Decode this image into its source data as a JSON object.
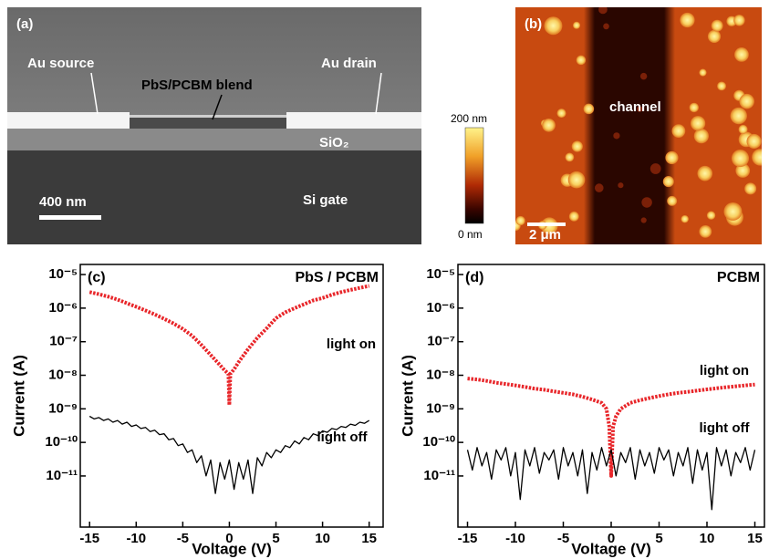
{
  "panel_a": {
    "label": "(a)",
    "source": "Au source",
    "drain": "Au drain",
    "blend": "PbS/PCBM blend",
    "oxide": "SiO₂",
    "gate": "Si gate",
    "scale_bar": "400 nm"
  },
  "panel_b": {
    "label": "(b)",
    "channel": "channel",
    "scale_bar": "2 μm",
    "colorbar_max": "200 nm",
    "colorbar_min": "0 nm"
  },
  "chart_data": [
    {
      "type": "line",
      "panel_label": "(c)",
      "title": "PbS / PCBM",
      "x_label": "Voltage (V)",
      "y_label": "Current (A)",
      "log_y": true,
      "xlim": [
        -16,
        16.5
      ],
      "ylim": [
        3e-13,
        2e-05
      ],
      "xticks": [
        -15,
        -10,
        -5,
        0,
        5,
        10,
        15
      ],
      "yticks": [
        {
          "value": 1e-05,
          "label": "10⁻⁵"
        },
        {
          "value": 1e-06,
          "label": "10⁻⁶"
        },
        {
          "value": 1e-07,
          "label": "10⁻⁷"
        },
        {
          "value": 1e-08,
          "label": "10⁻⁸"
        },
        {
          "value": 1e-09,
          "label": "10⁻⁹"
        },
        {
          "value": 1e-10,
          "label": "10⁻¹⁰"
        },
        {
          "value": 1e-11,
          "label": "10⁻¹¹"
        }
      ],
      "series": [
        {
          "name": "light on",
          "color": "#e8262a",
          "style": "dotted",
          "x": [
            -15,
            -14,
            -13,
            -12,
            -11,
            -10,
            -9,
            -8,
            -7,
            -6,
            -5,
            -4,
            -3,
            -2,
            -1,
            -0.5,
            -0.1,
            0,
            0.1,
            0.5,
            1,
            2,
            3,
            4,
            5,
            6,
            7,
            8,
            9,
            10,
            11,
            12,
            13,
            14,
            15
          ],
          "values": [
            3e-06,
            2.6e-06,
            2.2e-06,
            1.8e-06,
            1.4e-06,
            1.1e-06,
            8.5e-07,
            6.5e-07,
            4.8e-07,
            3.5e-07,
            2.4e-07,
            1.5e-07,
            8e-08,
            4e-08,
            2e-08,
            1.4e-08,
            1.1e-08,
            1.3e-09,
            1.1e-08,
            1.5e-08,
            2.5e-08,
            6e-08,
            1.3e-07,
            2.5e-07,
            5e-07,
            7.5e-07,
            1e-06,
            1.3e-06,
            1.7e-06,
            2e-06,
            2.5e-06,
            3e-06,
            3.5e-06,
            4e-06,
            4.6e-06
          ]
        },
        {
          "name": "light off",
          "color": "#000000",
          "style": "solid",
          "x": [
            -15,
            -14.5,
            -14,
            -13.5,
            -13,
            -12.5,
            -12,
            -11.5,
            -11,
            -10.5,
            -10,
            -9.5,
            -9,
            -8.5,
            -8,
            -7.5,
            -7,
            -6.5,
            -6,
            -5.5,
            -5,
            -4.5,
            -4,
            -3.5,
            -3,
            -2.5,
            -2,
            -1.5,
            -1,
            -0.5,
            0,
            0.5,
            1,
            1.5,
            2,
            2.5,
            3,
            3.5,
            4,
            4.5,
            5,
            5.5,
            6,
            6.5,
            7,
            7.5,
            8,
            8.5,
            9,
            9.5,
            10,
            10.5,
            11,
            11.5,
            12,
            12.5,
            13,
            13.5,
            14,
            14.5,
            15
          ],
          "values": [
            6e-10,
            5e-10,
            5.5e-10,
            4.5e-10,
            5e-10,
            4e-10,
            4.5e-10,
            3.5e-10,
            4e-10,
            3e-10,
            3.3e-10,
            2.6e-10,
            2.8e-10,
            2.1e-10,
            2.3e-10,
            1.7e-10,
            1.8e-10,
            1.2e-10,
            1.3e-10,
            8e-11,
            9e-11,
            5e-11,
            6e-11,
            2.5e-11,
            4e-11,
            1e-11,
            3e-11,
            3e-12,
            2.5e-11,
            8e-12,
            3e-11,
            4e-12,
            2.5e-11,
            8e-12,
            3e-11,
            3e-12,
            3.5e-11,
            2e-11,
            5e-11,
            3.5e-11,
            6e-11,
            5e-11,
            8e-11,
            7e-11,
            1.1e-10,
            9e-11,
            1.4e-10,
            1.2e-10,
            1.8e-10,
            1.6e-10,
            2.2e-10,
            2e-10,
            2.6e-10,
            2.4e-10,
            3e-10,
            2.8e-10,
            3.5e-10,
            3.2e-10,
            4e-10,
            3.7e-10,
            4.5e-10
          ]
        }
      ]
    },
    {
      "type": "line",
      "panel_label": "(d)",
      "title": "PCBM",
      "x_label": "Voltage (V)",
      "y_label": "Current (A)",
      "log_y": true,
      "xlim": [
        -16,
        16
      ],
      "ylim": [
        3e-13,
        2e-05
      ],
      "xticks": [
        -15,
        -10,
        -5,
        0,
        5,
        10,
        15
      ],
      "yticks": [
        {
          "value": 1e-05,
          "label": "10⁻⁵"
        },
        {
          "value": 1e-06,
          "label": "10⁻⁶"
        },
        {
          "value": 1e-07,
          "label": "10⁻⁷"
        },
        {
          "value": 1e-08,
          "label": "10⁻⁸"
        },
        {
          "value": 1e-09,
          "label": "10⁻⁹"
        },
        {
          "value": 1e-10,
          "label": "10⁻¹⁰"
        },
        {
          "value": 1e-11,
          "label": "10⁻¹¹"
        }
      ],
      "series": [
        {
          "name": "light on",
          "color": "#e8262a",
          "style": "dotted",
          "x": [
            -15,
            -14,
            -13,
            -12,
            -11,
            -10,
            -9,
            -8,
            -7,
            -6,
            -5,
            -4,
            -3,
            -2,
            -1,
            -0.5,
            -0.2,
            0,
            0.2,
            0.5,
            1,
            2,
            3,
            4,
            5,
            6,
            7,
            8,
            9,
            10,
            11,
            12,
            13,
            14,
            15
          ],
          "values": [
            8e-09,
            7.5e-09,
            6.8e-09,
            6e-09,
            5.5e-09,
            5e-09,
            4.5e-09,
            4e-09,
            3.7e-09,
            3.3e-09,
            3e-09,
            2.7e-09,
            2.3e-09,
            1.9e-09,
            1.5e-09,
            1e-09,
            3e-10,
            1e-11,
            3e-10,
            6e-10,
            1e-09,
            1.5e-09,
            1.8e-09,
            2.1e-09,
            2.4e-09,
            2.7e-09,
            3e-09,
            3.2e-09,
            3.5e-09,
            3.8e-09,
            4.1e-09,
            4.4e-09,
            4.7e-09,
            5e-09,
            5.3e-09
          ]
        },
        {
          "name": "light off",
          "color": "#000000",
          "style": "solid",
          "x": [
            -15,
            -14.5,
            -14,
            -13.5,
            -13,
            -12.5,
            -12,
            -11.5,
            -11,
            -10.5,
            -10,
            -9.5,
            -9,
            -8.5,
            -8,
            -7.5,
            -7,
            -6.5,
            -6,
            -5.5,
            -5,
            -4.5,
            -4,
            -3.5,
            -3,
            -2.5,
            -2,
            -1.5,
            -1,
            -0.5,
            0,
            0.5,
            1,
            1.5,
            2,
            2.5,
            3,
            3.5,
            4,
            4.5,
            5,
            5.5,
            6,
            6.5,
            7,
            7.5,
            8,
            8.5,
            9,
            9.5,
            10,
            10.5,
            11,
            11.5,
            12,
            12.5,
            13,
            13.5,
            14,
            14.5,
            15
          ],
          "values": [
            6e-11,
            1.5e-11,
            7e-11,
            2e-11,
            5e-11,
            8e-12,
            6e-11,
            3e-11,
            7e-11,
            1e-11,
            5e-11,
            2e-12,
            6e-11,
            2e-11,
            7e-11,
            1.2e-11,
            5e-11,
            3e-11,
            6e-11,
            8e-12,
            7e-11,
            2e-11,
            5e-11,
            1e-11,
            6e-11,
            3e-12,
            5e-11,
            1.5e-11,
            7e-11,
            2e-11,
            6e-11,
            1e-11,
            5e-11,
            2.5e-11,
            7e-11,
            8e-12,
            6e-11,
            2e-11,
            5e-11,
            1.2e-11,
            7e-11,
            3e-11,
            6e-11,
            1e-11,
            5e-11,
            2e-11,
            7e-11,
            6e-12,
            6e-11,
            1.5e-11,
            5e-11,
            1e-12,
            7e-11,
            2e-11,
            6e-11,
            1e-11,
            5e-11,
            2.5e-11,
            7e-11,
            1.5e-11,
            6e-11
          ]
        }
      ]
    }
  ]
}
